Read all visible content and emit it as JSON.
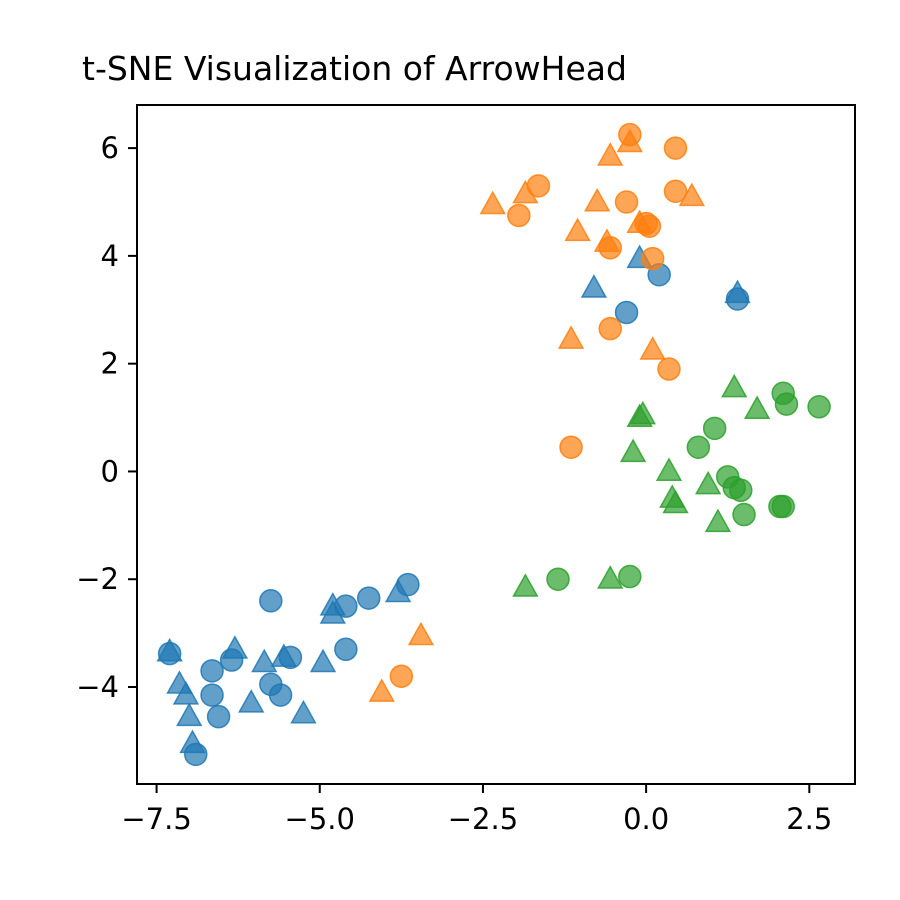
{
  "chart_data": {
    "type": "scatter",
    "title": "t-SNE Visualization of ArrowHead",
    "xlabel": "",
    "ylabel": "",
    "xlim": [
      -7.8,
      3.2
    ],
    "ylim": [
      -5.8,
      6.8
    ],
    "xticks": [
      -7.5,
      -5.0,
      -2.5,
      0.0,
      2.5
    ],
    "xtick_labels": [
      "−7.5",
      "−5.0",
      "−2.5",
      "0.0",
      "2.5"
    ],
    "yticks": [
      -4,
      -2,
      0,
      2,
      4,
      6
    ],
    "ytick_labels": [
      "−4",
      "−2",
      "0",
      "2",
      "4",
      "6"
    ],
    "grid": false,
    "legend": "none",
    "marker_opacity": 0.7,
    "series": [
      {
        "color": "#1f77b4",
        "marker": "circle",
        "points": [
          [
            -7.3,
            -3.38
          ],
          [
            -6.9,
            -5.25
          ],
          [
            -6.65,
            -3.7
          ],
          [
            -6.65,
            -4.15
          ],
          [
            -6.55,
            -4.55
          ],
          [
            -6.35,
            -3.5
          ],
          [
            -5.75,
            -2.4
          ],
          [
            -5.75,
            -3.95
          ],
          [
            -5.6,
            -4.15
          ],
          [
            -5.45,
            -3.45
          ],
          [
            -4.6,
            -2.5
          ],
          [
            -4.6,
            -3.3
          ],
          [
            -4.25,
            -2.35
          ],
          [
            -3.65,
            -2.1
          ],
          [
            -0.3,
            2.95
          ],
          [
            0.2,
            3.65
          ],
          [
            1.4,
            3.2
          ]
        ]
      },
      {
        "color": "#1f77b4",
        "marker": "triangle",
        "points": [
          [
            -7.3,
            -3.35
          ],
          [
            -7.15,
            -3.95
          ],
          [
            -7.05,
            -4.15
          ],
          [
            -7.0,
            -4.55
          ],
          [
            -6.95,
            -5.05
          ],
          [
            -6.3,
            -3.3
          ],
          [
            -6.05,
            -4.3
          ],
          [
            -5.85,
            -3.55
          ],
          [
            -5.55,
            -3.45
          ],
          [
            -5.25,
            -4.5
          ],
          [
            -4.95,
            -3.55
          ],
          [
            -4.8,
            -2.5
          ],
          [
            -4.8,
            -2.65
          ],
          [
            -3.8,
            -2.25
          ],
          [
            -0.8,
            3.4
          ],
          [
            -0.1,
            3.95
          ],
          [
            1.4,
            3.3
          ]
        ]
      },
      {
        "color": "#ff7f0e",
        "marker": "circle",
        "points": [
          [
            -3.75,
            -3.8
          ],
          [
            -1.95,
            4.75
          ],
          [
            -1.65,
            5.3
          ],
          [
            -1.15,
            0.45
          ],
          [
            -0.55,
            4.15
          ],
          [
            -0.55,
            2.65
          ],
          [
            -0.3,
            5.0
          ],
          [
            -0.25,
            6.25
          ],
          [
            0.0,
            4.6
          ],
          [
            0.05,
            4.55
          ],
          [
            0.1,
            3.95
          ],
          [
            0.35,
            1.9
          ],
          [
            0.45,
            5.2
          ],
          [
            0.45,
            6.0
          ]
        ]
      },
      {
        "color": "#ff7f0e",
        "marker": "triangle",
        "points": [
          [
            -4.05,
            -4.1
          ],
          [
            -3.45,
            -3.05
          ],
          [
            -2.35,
            4.95
          ],
          [
            -1.85,
            5.15
          ],
          [
            -1.15,
            2.45
          ],
          [
            -1.05,
            4.45
          ],
          [
            -0.75,
            5.0
          ],
          [
            -0.6,
            4.25
          ],
          [
            -0.55,
            5.85
          ],
          [
            -0.25,
            6.1
          ],
          [
            -0.1,
            4.6
          ],
          [
            0.1,
            2.25
          ],
          [
            0.7,
            5.1
          ]
        ]
      },
      {
        "color": "#2ca02c",
        "marker": "circle",
        "points": [
          [
            -1.35,
            -2.0
          ],
          [
            -0.25,
            -1.95
          ],
          [
            0.8,
            0.45
          ],
          [
            1.05,
            0.8
          ],
          [
            1.25,
            -0.1
          ],
          [
            1.35,
            -0.3
          ],
          [
            1.45,
            -0.35
          ],
          [
            1.5,
            -0.8
          ],
          [
            2.05,
            -0.65
          ],
          [
            2.1,
            -0.65
          ],
          [
            2.1,
            1.45
          ],
          [
            2.15,
            1.25
          ],
          [
            2.65,
            1.2
          ]
        ]
      },
      {
        "color": "#2ca02c",
        "marker": "triangle",
        "points": [
          [
            -1.85,
            -2.15
          ],
          [
            -0.55,
            -2.0
          ],
          [
            -0.2,
            0.35
          ],
          [
            -0.1,
            1.0
          ],
          [
            -0.05,
            1.05
          ],
          [
            0.35,
            0.0
          ],
          [
            0.4,
            -0.5
          ],
          [
            0.45,
            -0.6
          ],
          [
            0.95,
            -0.25
          ],
          [
            1.1,
            -0.95
          ],
          [
            1.35,
            1.55
          ],
          [
            1.7,
            1.15
          ]
        ]
      }
    ]
  }
}
